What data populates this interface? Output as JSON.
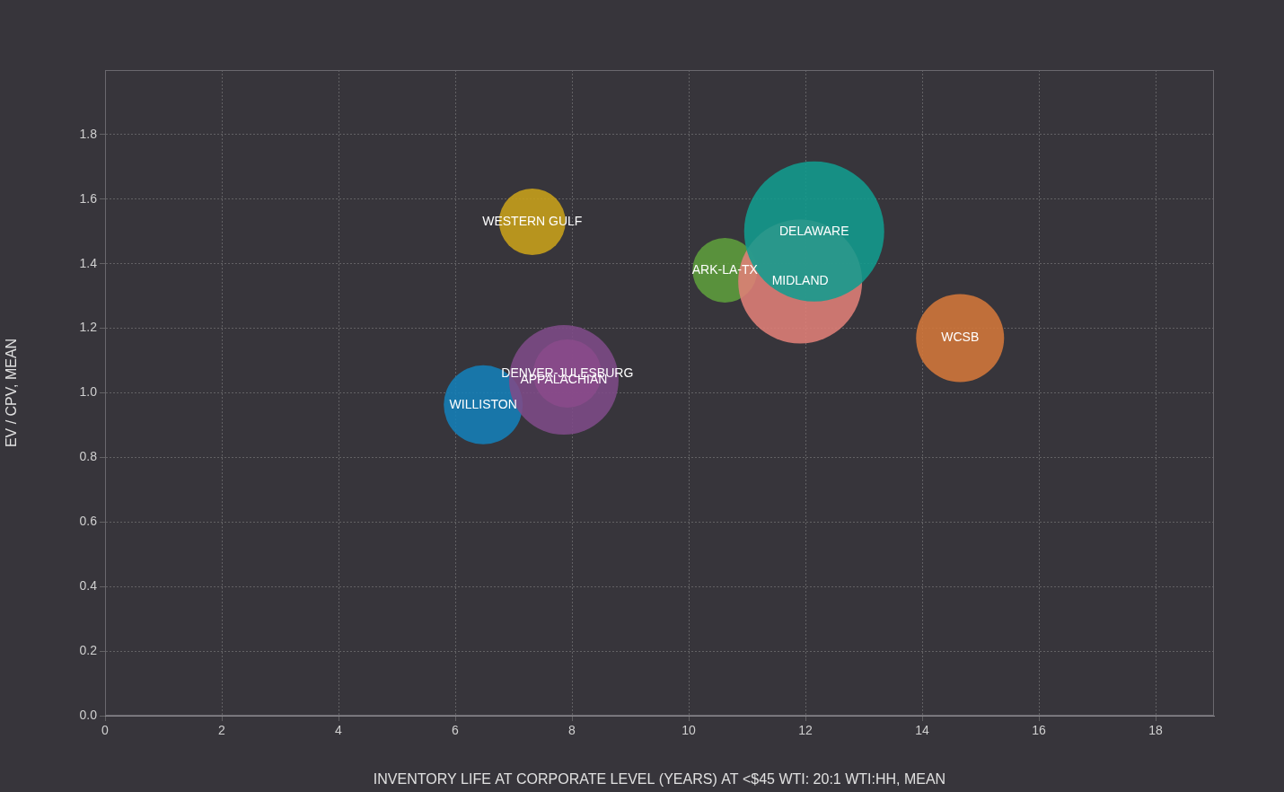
{
  "chart_data": {
    "type": "bubble",
    "x_label": "INVENTORY LIFE AT CORPORATE LEVEL (YEARS) AT <$45 WTI: 20:1 WTI:HH, MEAN",
    "y_label": "EV / CPV, MEAN",
    "xlim": [
      0,
      19
    ],
    "xticks": [
      0,
      2,
      4,
      6,
      8,
      10,
      12,
      14,
      16,
      18
    ],
    "ylim": [
      0,
      2
    ],
    "yticks": [
      {
        "value": 0,
        "label": "0.0"
      },
      {
        "value": 0.2,
        "label": "0.2"
      },
      {
        "value": 0.4,
        "label": "0.4"
      },
      {
        "value": 0.6,
        "label": "0.6"
      },
      {
        "value": 0.8,
        "label": "0.8"
      },
      {
        "value": 1,
        "label": "1.0"
      },
      {
        "value": 1.2,
        "label": "1.2"
      },
      {
        "value": 1.4,
        "label": "1.4"
      },
      {
        "value": 1.6,
        "label": "1.6"
      },
      {
        "value": 1.8,
        "label": "1.8"
      }
    ],
    "grid": true,
    "data_labels": true,
    "series": [
      {
        "name": "DELAWARE",
        "color": "#129c8e",
        "x": [
          12.15
        ],
        "values": [
          1.5
        ],
        "size": [
          78
        ]
      },
      {
        "name": "MIDLAND",
        "color": "#e07f78",
        "x": [
          11.91
        ],
        "values": [
          1.345
        ],
        "size": [
          69
        ]
      },
      {
        "name": "ARK-LA-TX",
        "color": "#5e9e3c",
        "x": [
          10.62
        ],
        "values": [
          1.38
        ],
        "size": [
          36
        ]
      },
      {
        "name": "WESTERN GULF",
        "color": "#c9a21a",
        "x": [
          7.32
        ],
        "values": [
          1.53
        ],
        "size": [
          37
        ]
      },
      {
        "name": "WCSB",
        "color": "#d4773a",
        "x": [
          14.65
        ],
        "values": [
          1.17
        ],
        "size": [
          49
        ]
      },
      {
        "name": "APPALACHIAN",
        "color": "#7e4b88",
        "x": [
          7.86
        ],
        "values": [
          1.04
        ],
        "size": [
          61
        ]
      },
      {
        "name": "DENVER-JULESBURG",
        "color": "#d84a9c",
        "x": [
          7.92
        ],
        "values": [
          1.06
        ],
        "size": [
          38
        ]
      },
      {
        "name": "WILLISTON",
        "color": "#1580b8",
        "x": [
          6.48
        ],
        "values": [
          0.963
        ],
        "size": [
          44
        ]
      }
    ]
  }
}
